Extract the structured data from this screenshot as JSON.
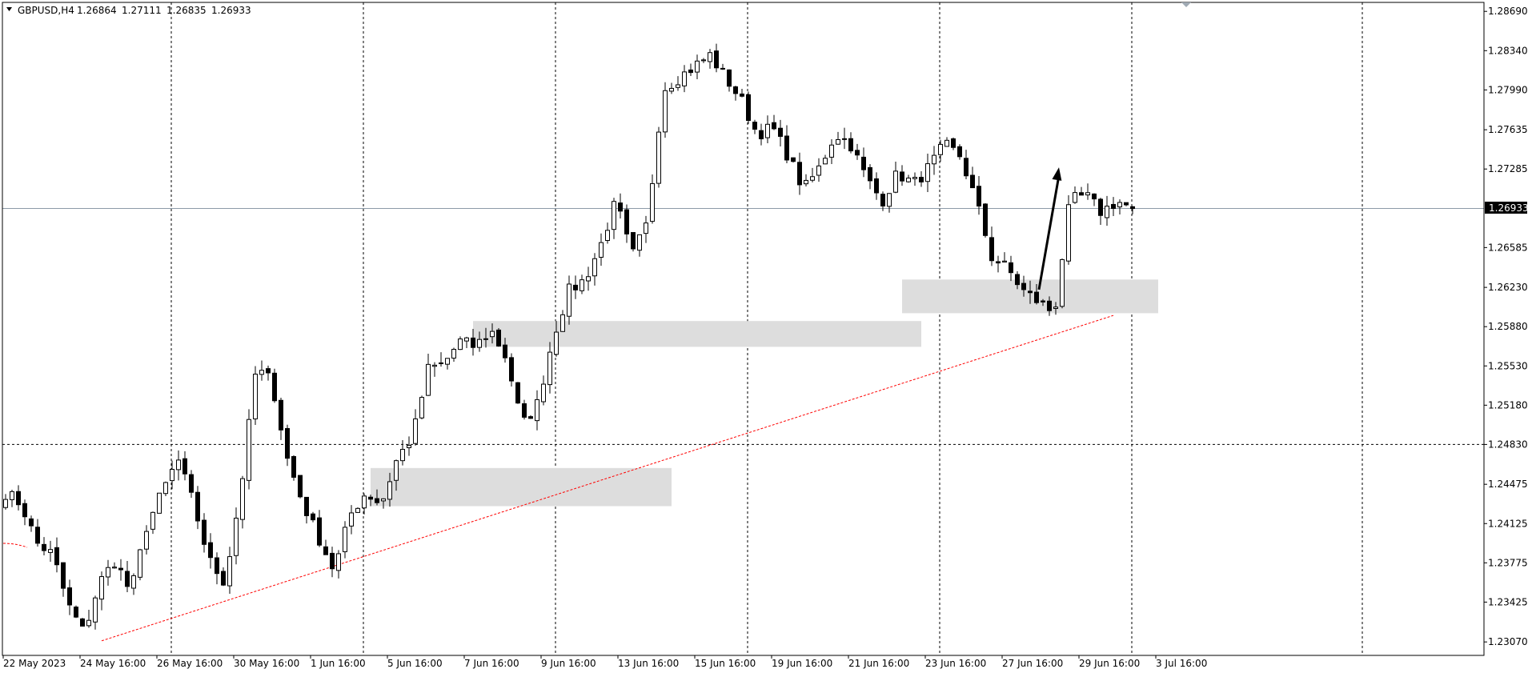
{
  "header": {
    "symbol": "GBPUSD,H4",
    "open": "1.26864",
    "high": "1.27111",
    "low": "1.26835",
    "close": "1.26933"
  },
  "current_price_label": "1.26933",
  "chart_data": {
    "type": "candlestick",
    "title": "",
    "xlabel": "",
    "ylabel": "",
    "ylim": [
      1.2295,
      1.2875
    ],
    "grid": "vertical-dashed",
    "y_ticks": [
      "1.28690",
      "1.28340",
      "1.27990",
      "1.27635",
      "1.27285",
      "1.26933",
      "1.26585",
      "1.26230",
      "1.25880",
      "1.25530",
      "1.25180",
      "1.24830",
      "1.24475",
      "1.24125",
      "1.23775",
      "1.23425",
      "1.23070"
    ],
    "x_ticks": [
      "22 May 2023",
      "24 May 16:00",
      "26 May 16:00",
      "30 May 16:00",
      "1 Jun 16:00",
      "5 Jun 16:00",
      "7 Jun 16:00",
      "9 Jun 16:00",
      "13 Jun 16:00",
      "15 Jun 16:00",
      "19 Jun 16:00",
      "21 Jun 16:00",
      "23 Jun 16:00",
      "27 Jun 16:00",
      "29 Jun 16:00",
      "3 Jul 16:00"
    ],
    "series_colors": {
      "bull": "#ffffff",
      "bear": "#000000",
      "wick": "#000000"
    },
    "key_closes": [
      1.244,
      1.243,
      1.2395,
      1.2385,
      1.234,
      1.2315,
      1.236,
      1.238,
      1.235,
      1.241,
      1.244,
      1.247,
      1.243,
      1.238,
      1.236,
      1.244,
      1.255,
      1.254,
      1.247,
      1.243,
      1.24,
      1.237,
      1.242,
      1.244,
      1.243,
      1.247,
      1.249,
      1.255,
      1.2555,
      1.2575,
      1.257,
      1.2585,
      1.256,
      1.25,
      1.252,
      1.258,
      1.262,
      1.263,
      1.266,
      1.27,
      1.265,
      1.268,
      1.28,
      1.281,
      1.282,
      1.283,
      1.281,
      1.279,
      1.276,
      1.2765,
      1.274,
      1.271,
      1.273,
      1.276,
      1.275,
      1.272,
      1.27,
      1.2725,
      1.2715,
      1.273,
      1.275,
      1.274,
      1.27,
      1.265,
      1.264,
      1.262,
      1.261,
      1.26,
      1.27,
      1.2705,
      1.269,
      1.27,
      1.2693
    ],
    "current_price": 1.26933,
    "horizontal_level": 1.2483,
    "zones": [
      {
        "from_index": 57,
        "to_index": 104,
        "top": 1.2462,
        "bottom": 1.2428,
        "color": "#dddddd"
      },
      {
        "from_index": 73,
        "to_index": 143,
        "top": 1.2593,
        "bottom": 1.257,
        "color": "#dddddd"
      },
      {
        "from_index": 140,
        "to_index": 180,
        "top": 1.263,
        "bottom": 1.26,
        "color": "#dddddd"
      }
    ],
    "trendline": {
      "from": {
        "index": 15,
        "price": 1.2308
      },
      "to": {
        "index": 173,
        "price": 1.2598
      },
      "color": "#ff0000",
      "style": "dashed"
    },
    "arrow": {
      "from": {
        "index": 161,
        "price": 1.2621
      },
      "to": {
        "index": 164,
        "price": 1.273
      },
      "color": "#000000"
    }
  }
}
